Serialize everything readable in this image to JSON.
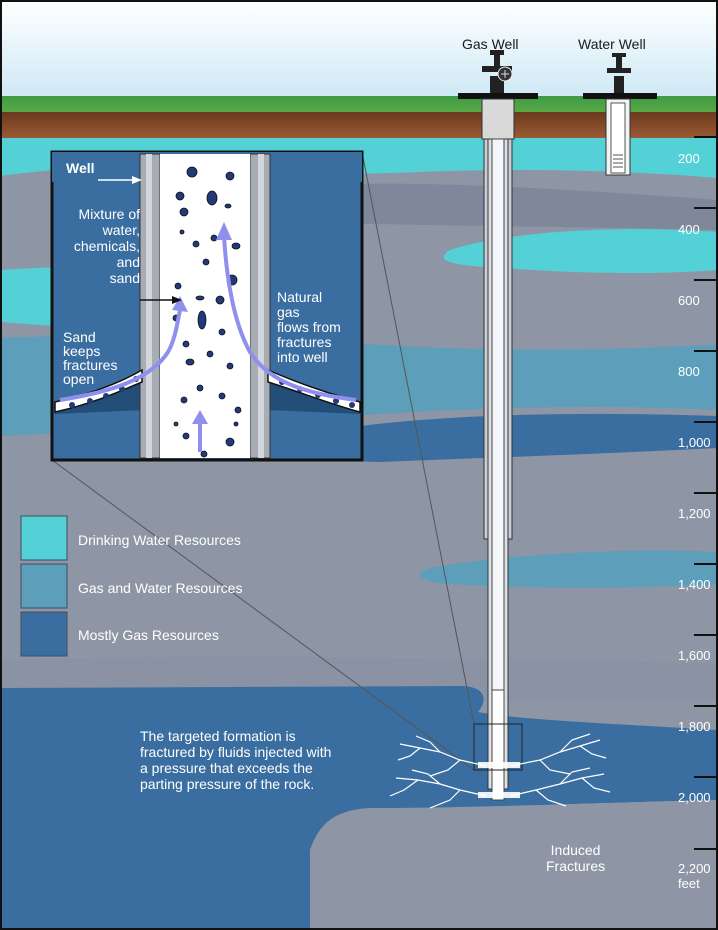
{
  "wells": {
    "gas_well_label": "Gas Well",
    "water_well_label": "Water Well"
  },
  "depth_scale": {
    "marks": [
      "200",
      "400",
      "600",
      "800",
      "1,000",
      "1,200",
      "1,400",
      "1,600",
      "1,800",
      "2,000",
      "2,200"
    ],
    "unit": "feet"
  },
  "inset": {
    "well_label": "Well",
    "mixture_label": [
      "Mixture of",
      "water,",
      "chemicals,",
      "and",
      "sand"
    ],
    "sand_label": [
      "Sand",
      "keeps",
      "fractures",
      "open"
    ],
    "gas_label": [
      "Natural",
      "gas",
      "flows from",
      "fractures",
      "into well"
    ]
  },
  "legend": {
    "items": [
      {
        "label": "Drinking Water Resources",
        "color": "#54d1d6"
      },
      {
        "label": "Gas and Water Resources",
        "color": "#5d9fba"
      },
      {
        "label": "Mostly Gas Resources",
        "color": "#3a6ea0"
      }
    ]
  },
  "annotations": {
    "fracture_note": [
      "The targeted formation is",
      "fractured by fluids injected with",
      "a pressure that exceeds the",
      "parting pressure of the rock."
    ],
    "induced_fractures": [
      "Induced",
      "Fractures"
    ]
  },
  "colors": {
    "sky": "#d8eef8",
    "grass": "#4aa34f",
    "soil": "#8a4d2a",
    "grey_rock": "#8e96a5",
    "drinking_water": "#54d1d6",
    "gas_and_water": "#5d9fba",
    "mostly_gas": "#3a6ea0"
  }
}
